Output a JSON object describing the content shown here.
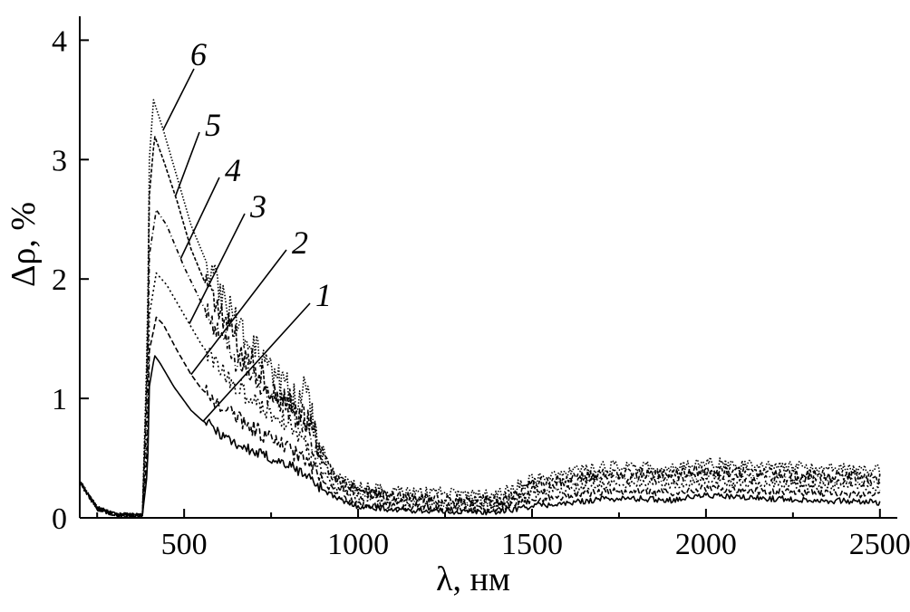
{
  "chart_data": {
    "type": "line",
    "title": "",
    "xlabel": "λ, нм",
    "ylabel": "Δρ, %",
    "xlim": [
      200,
      2550
    ],
    "ylim": [
      0,
      4.2
    ],
    "xticks": [
      500,
      1000,
      1500,
      2000,
      2500
    ],
    "yticks": [
      0,
      1,
      2,
      3,
      4
    ],
    "legend": "inline leader-line labels",
    "grid": false,
    "series": [
      {
        "name": "1",
        "dash": "",
        "points": [
          [
            200,
            0.3
          ],
          [
            250,
            0.08
          ],
          [
            300,
            0.03
          ],
          [
            350,
            0.02
          ],
          [
            380,
            0.02
          ],
          [
            395,
            0.4
          ],
          [
            400,
            1.1
          ],
          [
            415,
            1.36
          ],
          [
            430,
            1.3
          ],
          [
            470,
            1.1
          ],
          [
            520,
            0.9
          ],
          [
            550,
            0.82
          ],
          [
            600,
            0.72
          ],
          [
            650,
            0.62
          ],
          [
            700,
            0.55
          ],
          [
            750,
            0.5
          ],
          [
            800,
            0.44
          ],
          [
            850,
            0.36
          ],
          [
            900,
            0.24
          ],
          [
            950,
            0.14
          ],
          [
            1000,
            0.1
          ],
          [
            1100,
            0.07
          ],
          [
            1200,
            0.06
          ],
          [
            1300,
            0.05
          ],
          [
            1400,
            0.05
          ],
          [
            1500,
            0.1
          ],
          [
            1600,
            0.12
          ],
          [
            1700,
            0.16
          ],
          [
            1800,
            0.16
          ],
          [
            1900,
            0.15
          ],
          [
            2000,
            0.19
          ],
          [
            2100,
            0.17
          ],
          [
            2200,
            0.16
          ],
          [
            2300,
            0.15
          ],
          [
            2400,
            0.14
          ],
          [
            2500,
            0.13
          ]
        ]
      },
      {
        "name": "2",
        "dash": "6,3",
        "points": [
          [
            200,
            0.3
          ],
          [
            250,
            0.08
          ],
          [
            300,
            0.03
          ],
          [
            350,
            0.02
          ],
          [
            380,
            0.02
          ],
          [
            395,
            0.6
          ],
          [
            400,
            1.4
          ],
          [
            420,
            1.68
          ],
          [
            440,
            1.62
          ],
          [
            480,
            1.4
          ],
          [
            520,
            1.2
          ],
          [
            550,
            1.08
          ],
          [
            600,
            0.95
          ],
          [
            650,
            0.85
          ],
          [
            700,
            0.75
          ],
          [
            750,
            0.66
          ],
          [
            800,
            0.58
          ],
          [
            850,
            0.48
          ],
          [
            900,
            0.3
          ],
          [
            950,
            0.17
          ],
          [
            1000,
            0.12
          ],
          [
            1100,
            0.09
          ],
          [
            1200,
            0.08
          ],
          [
            1300,
            0.07
          ],
          [
            1400,
            0.07
          ],
          [
            1500,
            0.15
          ],
          [
            1600,
            0.18
          ],
          [
            1700,
            0.22
          ],
          [
            1800,
            0.22
          ],
          [
            1900,
            0.21
          ],
          [
            2000,
            0.25
          ],
          [
            2100,
            0.23
          ],
          [
            2200,
            0.22
          ],
          [
            2300,
            0.21
          ],
          [
            2400,
            0.2
          ],
          [
            2500,
            0.19
          ]
        ]
      },
      {
        "name": "3",
        "dash": "2,3",
        "points": [
          [
            200,
            0.3
          ],
          [
            250,
            0.08
          ],
          [
            300,
            0.03
          ],
          [
            350,
            0.02
          ],
          [
            380,
            0.02
          ],
          [
            395,
            0.8
          ],
          [
            400,
            1.7
          ],
          [
            420,
            2.05
          ],
          [
            450,
            1.95
          ],
          [
            500,
            1.7
          ],
          [
            550,
            1.45
          ],
          [
            600,
            1.25
          ],
          [
            650,
            1.1
          ],
          [
            700,
            0.98
          ],
          [
            750,
            0.88
          ],
          [
            800,
            0.8
          ],
          [
            850,
            0.62
          ],
          [
            900,
            0.38
          ],
          [
            950,
            0.22
          ],
          [
            1000,
            0.16
          ],
          [
            1100,
            0.12
          ],
          [
            1200,
            0.11
          ],
          [
            1300,
            0.1
          ],
          [
            1400,
            0.1
          ],
          [
            1500,
            0.2
          ],
          [
            1600,
            0.24
          ],
          [
            1700,
            0.28
          ],
          [
            1800,
            0.28
          ],
          [
            1900,
            0.27
          ],
          [
            2000,
            0.31
          ],
          [
            2100,
            0.29
          ],
          [
            2200,
            0.28
          ],
          [
            2300,
            0.27
          ],
          [
            2400,
            0.26
          ],
          [
            2500,
            0.25
          ]
        ]
      },
      {
        "name": "4",
        "dash": "5,3,1,3",
        "points": [
          [
            200,
            0.3
          ],
          [
            250,
            0.08
          ],
          [
            300,
            0.03
          ],
          [
            350,
            0.02
          ],
          [
            380,
            0.02
          ],
          [
            395,
            1.1
          ],
          [
            400,
            2.2
          ],
          [
            420,
            2.58
          ],
          [
            450,
            2.45
          ],
          [
            500,
            2.1
          ],
          [
            550,
            1.8
          ],
          [
            600,
            1.55
          ],
          [
            650,
            1.32
          ],
          [
            700,
            1.15
          ],
          [
            750,
            1.02
          ],
          [
            800,
            0.92
          ],
          [
            850,
            0.75
          ],
          [
            900,
            0.45
          ],
          [
            950,
            0.26
          ],
          [
            1000,
            0.2
          ],
          [
            1100,
            0.15
          ],
          [
            1200,
            0.14
          ],
          [
            1300,
            0.13
          ],
          [
            1400,
            0.12
          ],
          [
            1500,
            0.24
          ],
          [
            1600,
            0.29
          ],
          [
            1700,
            0.33
          ],
          [
            1800,
            0.33
          ],
          [
            1900,
            0.32
          ],
          [
            2000,
            0.36
          ],
          [
            2100,
            0.34
          ],
          [
            2200,
            0.33
          ],
          [
            2300,
            0.32
          ],
          [
            2400,
            0.31
          ],
          [
            2500,
            0.3
          ]
        ]
      },
      {
        "name": "5",
        "dash": "4,2",
        "points": [
          [
            200,
            0.3
          ],
          [
            250,
            0.08
          ],
          [
            300,
            0.03
          ],
          [
            350,
            0.02
          ],
          [
            380,
            0.02
          ],
          [
            395,
            1.4
          ],
          [
            400,
            2.7
          ],
          [
            415,
            3.2
          ],
          [
            440,
            3.0
          ],
          [
            480,
            2.65
          ],
          [
            520,
            2.25
          ],
          [
            570,
            1.9
          ],
          [
            620,
            1.62
          ],
          [
            670,
            1.4
          ],
          [
            720,
            1.2
          ],
          [
            770,
            1.05
          ],
          [
            820,
            0.9
          ],
          [
            860,
            0.8
          ],
          [
            900,
            0.5
          ],
          [
            950,
            0.3
          ],
          [
            1000,
            0.23
          ],
          [
            1100,
            0.18
          ],
          [
            1200,
            0.17
          ],
          [
            1300,
            0.16
          ],
          [
            1400,
            0.15
          ],
          [
            1500,
            0.28
          ],
          [
            1600,
            0.33
          ],
          [
            1700,
            0.37
          ],
          [
            1800,
            0.37
          ],
          [
            1900,
            0.36
          ],
          [
            2000,
            0.4
          ],
          [
            2100,
            0.38
          ],
          [
            2200,
            0.37
          ],
          [
            2300,
            0.36
          ],
          [
            2400,
            0.35
          ],
          [
            2500,
            0.34
          ]
        ]
      },
      {
        "name": "6",
        "dash": "1.5,2",
        "points": [
          [
            200,
            0.3
          ],
          [
            250,
            0.08
          ],
          [
            300,
            0.03
          ],
          [
            350,
            0.02
          ],
          [
            380,
            0.02
          ],
          [
            395,
            1.6
          ],
          [
            400,
            3.0
          ],
          [
            412,
            3.5
          ],
          [
            440,
            3.25
          ],
          [
            480,
            2.85
          ],
          [
            520,
            2.45
          ],
          [
            570,
            2.1
          ],
          [
            620,
            1.8
          ],
          [
            670,
            1.55
          ],
          [
            720,
            1.32
          ],
          [
            770,
            1.15
          ],
          [
            820,
            1.0
          ],
          [
            850,
            1.05
          ],
          [
            880,
            0.7
          ],
          [
            920,
            0.4
          ],
          [
            960,
            0.3
          ],
          [
            1000,
            0.27
          ],
          [
            1100,
            0.22
          ],
          [
            1200,
            0.21
          ],
          [
            1300,
            0.2
          ],
          [
            1400,
            0.19
          ],
          [
            1500,
            0.32
          ],
          [
            1600,
            0.38
          ],
          [
            1700,
            0.43
          ],
          [
            1800,
            0.43
          ],
          [
            1900,
            0.42
          ],
          [
            2000,
            0.47
          ],
          [
            2100,
            0.44
          ],
          [
            2200,
            0.43
          ],
          [
            2300,
            0.42
          ],
          [
            2400,
            0.41
          ],
          [
            2500,
            0.4
          ]
        ]
      }
    ]
  }
}
